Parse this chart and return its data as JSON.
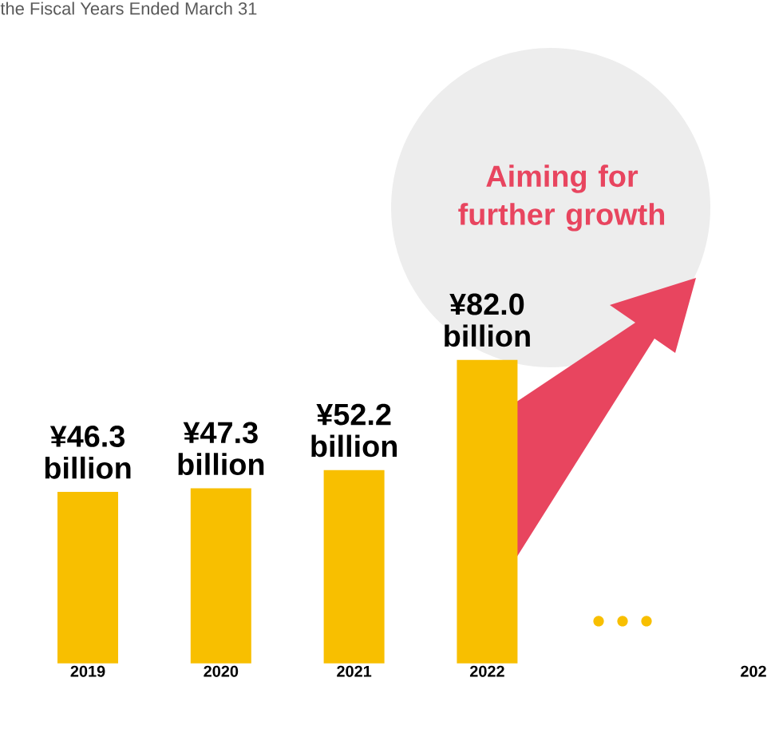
{
  "chart_data": {
    "type": "bar",
    "title": "the Fiscal Years Ended March 31",
    "categories": [
      "2019",
      "2020",
      "2021",
      "2022",
      null,
      "202"
    ],
    "values": [
      46.3,
      47.3,
      52.2,
      82.0,
      null,
      null
    ],
    "value_labels": [
      "¥46.3 billion",
      "¥47.3 billion",
      "¥52.2 billion",
      "¥82.0 billion",
      null,
      null
    ],
    "color": "#f8bf00",
    "annotations": [
      "Aiming for further growth"
    ]
  }
}
